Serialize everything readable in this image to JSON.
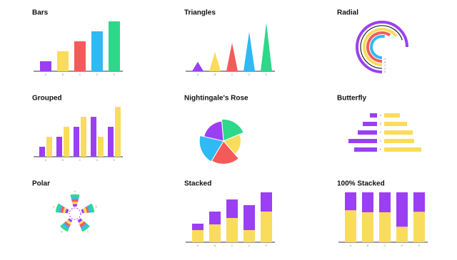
{
  "chart_data": [
    {
      "type": "bar",
      "title": "Bars",
      "categories": [
        "A",
        "B",
        "C",
        "D",
        "E"
      ],
      "values": [
        20,
        40,
        60,
        80,
        100
      ],
      "colors": [
        "#9b3ff5",
        "#f9dc5c",
        "#f55a5a",
        "#2fb9f5",
        "#2ed88a"
      ],
      "ylim": [
        0,
        100
      ]
    },
    {
      "type": "triangle",
      "title": "Triangles",
      "categories": [
        "A",
        "B",
        "C",
        "D",
        "E"
      ],
      "values": [
        19,
        39,
        57,
        79,
        97
      ],
      "colors": [
        "#9b3ff5",
        "#f9dc5c",
        "#f55a5a",
        "#2fb9f5",
        "#2ed88a"
      ],
      "ylim": [
        0,
        100
      ]
    },
    {
      "type": "radial",
      "title": "Radial",
      "categories": [
        "A",
        "B",
        "C",
        "D",
        "E"
      ],
      "values": [
        100,
        93,
        86,
        79,
        72
      ],
      "colors": [
        "#9b3ff5",
        "#222222",
        "#f9dc5c",
        "#f55a5a",
        "#2fb9f5"
      ],
      "ylim": [
        0,
        100
      ]
    },
    {
      "type": "grouped",
      "title": "Grouped",
      "categories": [
        "A",
        "B",
        "C",
        "D",
        "E"
      ],
      "series": [
        {
          "color": "#9b3ff5",
          "values": [
            20,
            40,
            60,
            80,
            60
          ]
        },
        {
          "color": "#f9dc5c",
          "values": [
            40,
            60,
            80,
            40,
            100
          ]
        }
      ],
      "ylim": [
        0,
        100
      ]
    },
    {
      "type": "rose",
      "title": "Nightingale's Rose",
      "categories": [
        "A",
        "B",
        "C",
        "D",
        "E"
      ],
      "values": [
        85,
        68,
        90,
        94,
        78
      ],
      "colors": [
        "#2ed88a",
        "#f9dc5c",
        "#f55a5a",
        "#2fb9f5",
        "#9b3ff5"
      ],
      "ylim": [
        0,
        100
      ]
    },
    {
      "type": "butterfly",
      "title": "Butterfly",
      "categories": [
        "A",
        "B",
        "C",
        "D",
        "E"
      ],
      "series": [
        {
          "color": "#9b3ff5",
          "values": [
            20,
            40,
            54,
            80,
            64
          ]
        },
        {
          "color": "#f9dc5c",
          "values": [
            44,
            64,
            80,
            84,
            104
          ]
        }
      ],
      "xlim": [
        0,
        110
      ]
    },
    {
      "type": "polar",
      "title": "Polar",
      "categories": [
        "A",
        "B",
        "C",
        "D",
        "E"
      ],
      "series": [
        {
          "color": "#9b3ff5",
          "values": [
            5,
            4,
            5,
            4,
            5
          ]
        },
        {
          "color": "#f9dc5c",
          "values": [
            4,
            5,
            4,
            5,
            4
          ]
        },
        {
          "color": "#f55a5a",
          "values": [
            5,
            4,
            5,
            4,
            5
          ]
        },
        {
          "color": "#2fb9f5",
          "values": [
            4,
            5,
            5,
            5,
            4
          ]
        },
        {
          "color": "#2ed88a",
          "values": [
            5,
            5,
            4,
            5,
            5
          ]
        }
      ],
      "ylim": [
        0,
        40
      ]
    },
    {
      "type": "stacked",
      "title": "Stacked",
      "categories": [
        "A",
        "B",
        "C",
        "D",
        "E"
      ],
      "series": [
        {
          "color": "#f9dc5c",
          "values": [
            34,
            50,
            68,
            34,
            86
          ]
        },
        {
          "color": "#9b3ff5",
          "values": [
            18,
            36,
            52,
            70,
            54
          ]
        }
      ],
      "ylim": [
        0,
        140
      ]
    },
    {
      "type": "stacked",
      "title": "100% Stacked",
      "categories": [
        "A",
        "B",
        "C",
        "D",
        "E"
      ],
      "series": [
        {
          "color": "#f9dc5c",
          "values": [
            64,
            60,
            60,
            31,
            61
          ]
        },
        {
          "color": "#9b3ff5",
          "values": [
            36,
            40,
            40,
            69,
            39
          ]
        }
      ],
      "ylim": [
        0,
        100
      ]
    }
  ]
}
